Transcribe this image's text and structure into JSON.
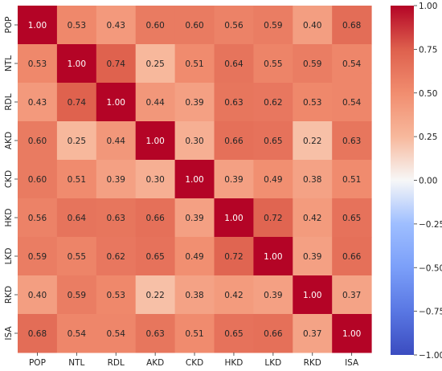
{
  "chart_data": {
    "type": "heatmap",
    "title": "",
    "xlabel": "",
    "ylabel": "",
    "rows": [
      "POP",
      "NTL",
      "RDL",
      "AKD",
      "CKD",
      "HKD",
      "LKD",
      "RKD",
      "ISA"
    ],
    "columns": [
      "POP",
      "NTL",
      "RDL",
      "AKD",
      "CKD",
      "HKD",
      "LKD",
      "RKD",
      "ISA"
    ],
    "values": [
      [
        1.0,
        0.53,
        0.43,
        0.6,
        0.6,
        0.56,
        0.59,
        0.4,
        0.68
      ],
      [
        0.53,
        1.0,
        0.74,
        0.25,
        0.51,
        0.64,
        0.55,
        0.59,
        0.54
      ],
      [
        0.43,
        0.74,
        1.0,
        0.44,
        0.39,
        0.63,
        0.62,
        0.53,
        0.54
      ],
      [
        0.6,
        0.25,
        0.44,
        1.0,
        0.3,
        0.66,
        0.65,
        0.22,
        0.63
      ],
      [
        0.6,
        0.51,
        0.39,
        0.3,
        1.0,
        0.39,
        0.49,
        0.38,
        0.51
      ],
      [
        0.56,
        0.64,
        0.63,
        0.66,
        0.39,
        1.0,
        0.72,
        0.42,
        0.65
      ],
      [
        0.59,
        0.55,
        0.62,
        0.65,
        0.49,
        0.72,
        1.0,
        0.39,
        0.66
      ],
      [
        0.4,
        0.59,
        0.53,
        0.22,
        0.38,
        0.42,
        0.39,
        1.0,
        0.37
      ],
      [
        0.68,
        0.54,
        0.54,
        0.63,
        0.51,
        0.65,
        0.66,
        0.37,
        1.0
      ]
    ],
    "annotation_format": "0.00",
    "colormap": "coolwarm",
    "vmin": -1.0,
    "vmax": 1.0,
    "colorbar_ticks": [
      "1.00",
      "0.75",
      "0.50",
      "0.25",
      "0.00",
      "−0.25",
      "−0.50",
      "−0.75",
      "−1.00"
    ],
    "colorbar_tick_values": [
      1.0,
      0.75,
      0.5,
      0.25,
      0.0,
      -0.25,
      -0.5,
      -0.75,
      -1.0
    ],
    "grid": false,
    "legend": "colorbar-right"
  }
}
